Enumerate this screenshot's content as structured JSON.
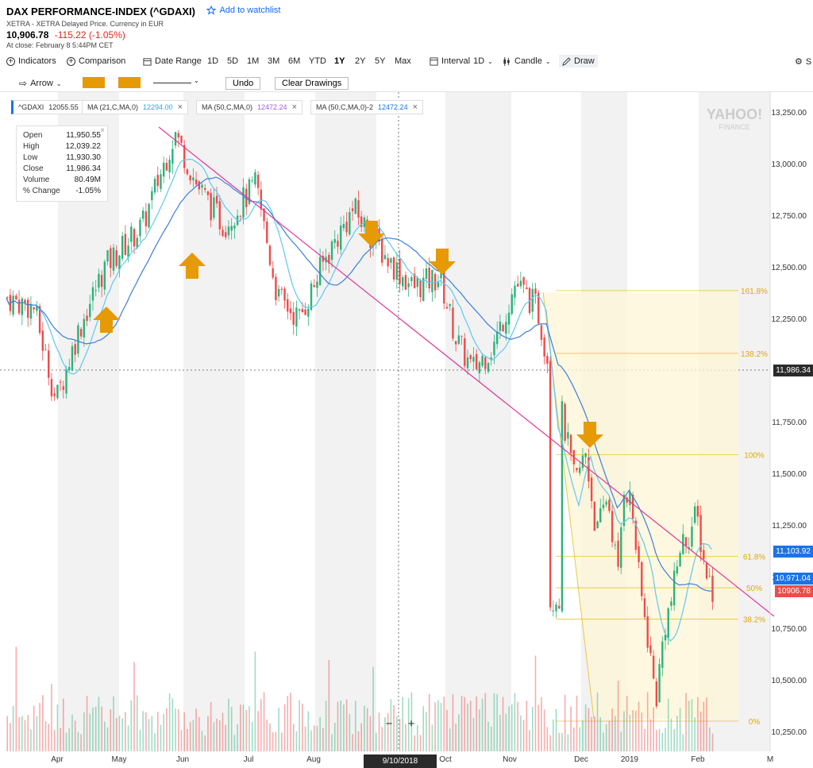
{
  "header": {
    "title": "DAX PERFORMANCE-INDEX (^GDAXI)",
    "watchlist": "Add to watchlist",
    "exchange": "XETRA - XETRA Delayed Price. Currency in EUR",
    "price": "10,906.78",
    "change": "-115.22 (-1.05%)",
    "close_time": "At close: February 8 5:44PM CET"
  },
  "toolbar": {
    "indicators": "Indicators",
    "comparison": "Comparison",
    "date_range": "Date Range",
    "ranges": [
      "1D",
      "5D",
      "1M",
      "3M",
      "6M",
      "YTD",
      "1Y",
      "2Y",
      "5Y",
      "Max"
    ],
    "active_range": "1Y",
    "interval": "Interval",
    "interval_value": "1D",
    "candle": "Candle",
    "draw": "Draw",
    "settings": "S"
  },
  "draw_toolbar": {
    "arrow": "Arrow",
    "undo": "Undo",
    "clear": "Clear Drawings",
    "swatch_color": "#e59a06"
  },
  "legend": {
    "symbol": "^GDAXI",
    "symbol_value": "12055.55",
    "ma1": "MA (21,C,MA,0)",
    "ma1_value": "12294.00",
    "ma1_color": "#1ab0e8",
    "ma2": "MA (50,C,MA,0)",
    "ma2_value": "12472.24",
    "ma2_color": "#a25cf2",
    "ma3": "MA (50,C,MA,0)-2",
    "ma3_value": "12472.24",
    "ma3_color": "#1a73e8"
  },
  "ohlc": {
    "open_label": "Open",
    "open": "11,950.55",
    "high_label": "High",
    "high": "12,039.22",
    "low_label": "Low",
    "low": "11,930.30",
    "close_label": "Close",
    "close": "11,986.34",
    "volume_label": "Volume",
    "volume": "80.49M",
    "pct_label": "% Change",
    "pct": "-1.05%"
  },
  "watermark": "YAHOO! FINANCE",
  "price_tags": {
    "crosshair": "11,986.34",
    "ma_a": "11,103.92",
    "ma_b": "10,971.04",
    "last": "10906.78"
  },
  "crosshair_date": "9/10/2018",
  "zoom": {
    "minus": "−",
    "plus": "+"
  },
  "chart_data": {
    "type": "candlestick",
    "x_labels": [
      "Apr",
      "May",
      "Jun",
      "Jul",
      "Aug",
      "Oct",
      "Nov",
      "Dec",
      "2019",
      "Feb",
      "M"
    ],
    "y_ticks": [
      "13,250.00",
      "13,000.00",
      "12,750.00",
      "12,500.00",
      "12,250.00",
      "11,750.00",
      "11,500.00",
      "11,250.00",
      "11,000.00",
      "10,750.00",
      "10,500.00",
      "10,250.00"
    ],
    "ylim": [
      10200,
      13350
    ],
    "fib_levels": [
      {
        "label": "161.8%",
        "value": 12385
      },
      {
        "label": "138.2%",
        "value": 12081
      },
      {
        "label": "100%",
        "value": 11590
      },
      {
        "label": "61.8%",
        "value": 11098
      },
      {
        "label": "50%",
        "value": 10946
      },
      {
        "label": "38.2%",
        "value": 10794
      },
      {
        "label": "0%",
        "value": 10300
      }
    ],
    "colors": {
      "up": "#2ab27b",
      "down": "#f04a4a",
      "trend": "#e0389a",
      "ma_light": "#5ec8f2",
      "ma_dark": "#3c7fd9",
      "fib": "#e8b800"
    }
  }
}
